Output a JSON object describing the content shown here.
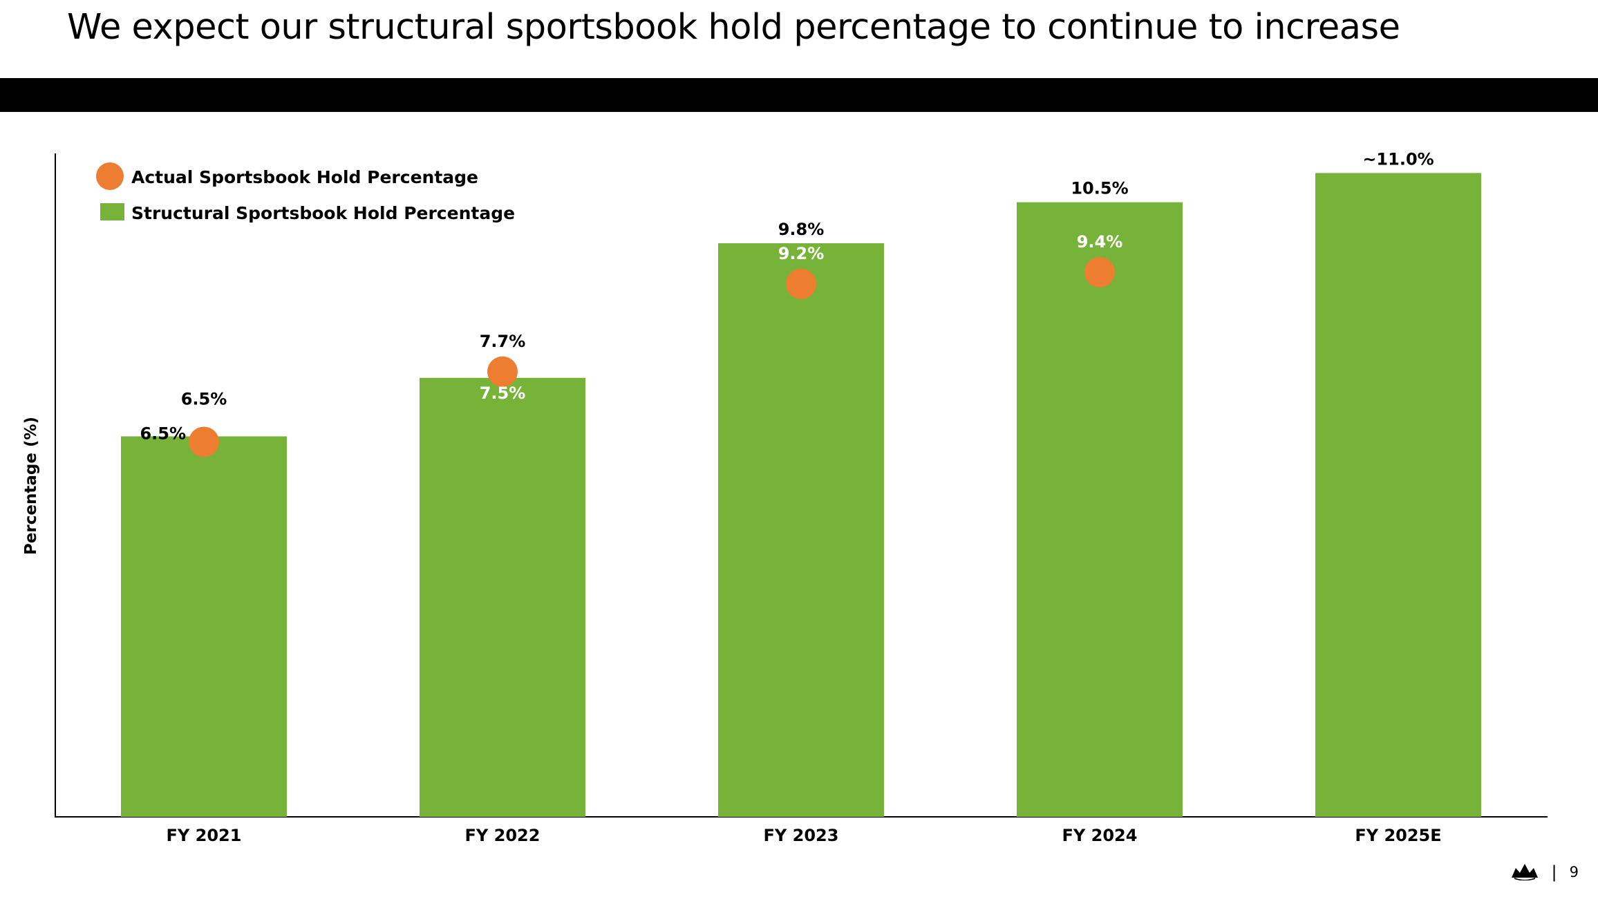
{
  "slide": {
    "title": "We expect our structural sportsbook hold percentage to continue to increase",
    "page_number": "9",
    "separator": "|",
    "logo_icon": "crown-logo-icon"
  },
  "colors": {
    "bar": "#78B339",
    "dot": "#ED7D31",
    "title_bar": "#000000"
  },
  "chart_data": {
    "type": "bar",
    "title": "",
    "xlabel": "",
    "ylabel": "Percentage (%)",
    "ylim": [
      0,
      12
    ],
    "grid": false,
    "legend_position": "top-left",
    "categories": [
      "FY 2021",
      "FY 2022",
      "FY 2023",
      "FY 2024",
      "FY 2025E"
    ],
    "series": [
      {
        "name": "Structural Sportsbook Hold Percentage",
        "kind": "bar",
        "values": [
          6.5,
          7.5,
          9.8,
          10.5,
          11.0
        ],
        "labels": [
          "6.5%",
          "7.5%",
          "9.8%",
          "10.5%",
          "~11.0%"
        ]
      },
      {
        "name": "Actual Sportsbook Hold Percentage",
        "kind": "dot",
        "values": [
          6.5,
          7.7,
          9.2,
          9.4,
          null
        ],
        "labels": [
          "6.5%",
          "7.7%",
          "9.2%",
          "9.4%",
          null
        ]
      }
    ]
  }
}
